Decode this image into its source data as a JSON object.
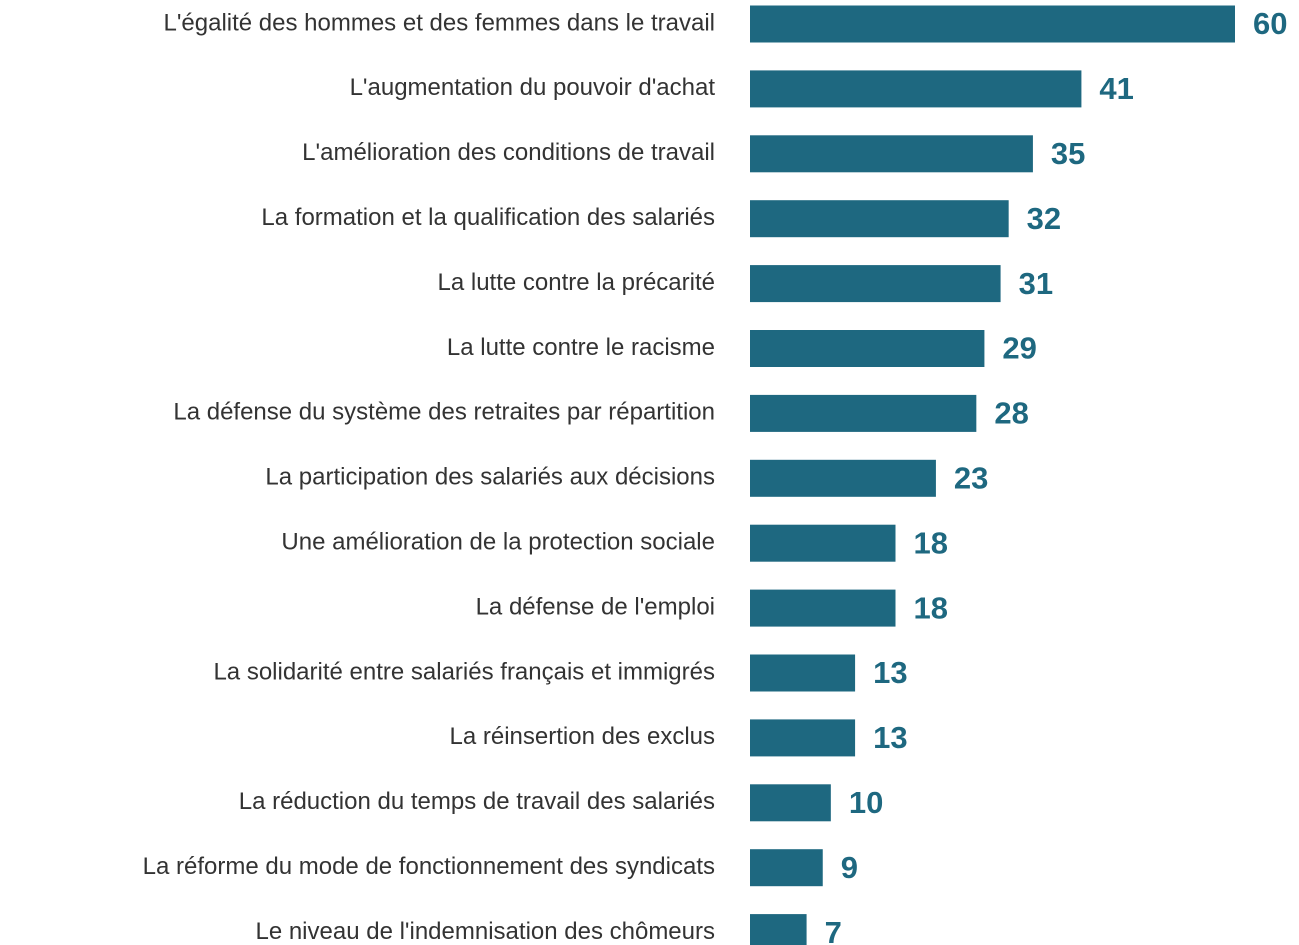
{
  "chart_data": {
    "type": "bar",
    "orientation": "horizontal",
    "categories": [
      "L'égalité des hommes et des femmes dans le travail",
      "L'augmentation du pouvoir d'achat",
      "L'amélioration des conditions de travail",
      "La formation et la qualification des salariés",
      "La lutte contre la précarité",
      "La lutte contre le racisme",
      "La défense du système des retraites par répartition",
      "La participation des salariés aux décisions",
      "Une amélioration de la protection sociale",
      "La défense de l'emploi",
      "La solidarité entre salariés français et immigrés",
      "La réinsertion des exclus",
      "La réduction du temps de travail des salariés",
      "La réforme du mode de fonctionnement des syndicats",
      "Le niveau de l'indemnisation des chômeurs"
    ],
    "values": [
      60,
      41,
      35,
      32,
      31,
      29,
      28,
      23,
      18,
      18,
      13,
      13,
      10,
      9,
      7
    ],
    "color": "#1e6880"
  }
}
